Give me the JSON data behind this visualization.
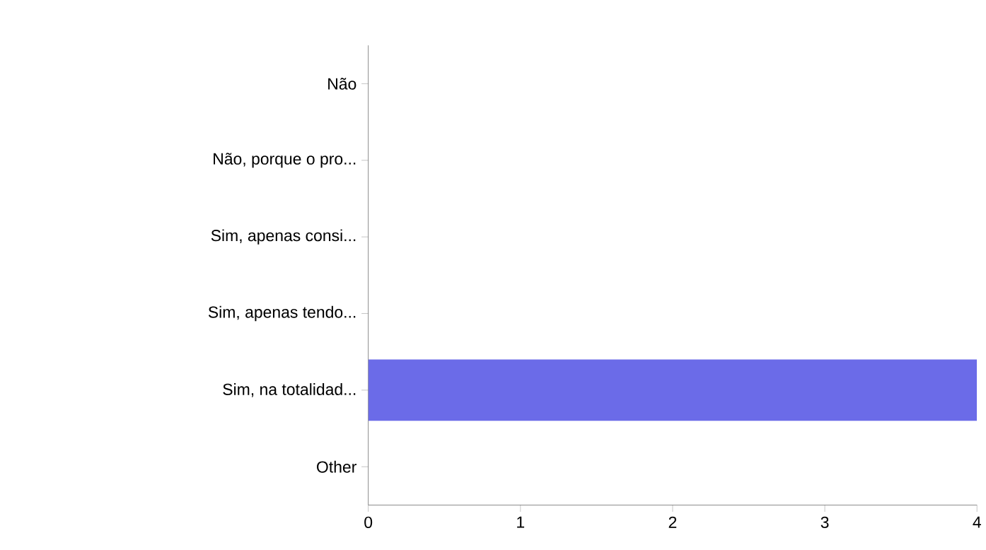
{
  "chart_data": {
    "type": "bar",
    "orientation": "horizontal",
    "categories": [
      "Não",
      "Não, porque o pro...",
      "Sim, apenas consi...",
      "Sim, apenas tendo...",
      "Sim, na totalidad...",
      "Other"
    ],
    "values": [
      0,
      0,
      0,
      0,
      4,
      0
    ],
    "color": "#6b6be8",
    "xlim": [
      0,
      4
    ],
    "xticks": [
      0,
      1,
      2,
      3,
      4
    ],
    "grid": false
  }
}
